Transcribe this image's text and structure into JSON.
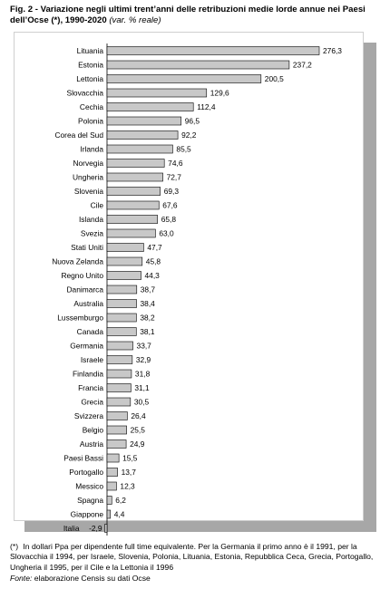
{
  "title": {
    "main": "Fig. 2 - Variazione negli ultimi trent’anni delle retribuzioni medie lorde annue nei Paesi dell’Ocse (*), 1990-2020",
    "unit": "(var. % reale)"
  },
  "chart_data": {
    "type": "bar",
    "orientation": "horizontal",
    "categories": [
      "Lituania",
      "Estonia",
      "Lettonia",
      "Slovacchia",
      "Cechia",
      "Polonia",
      "Corea del Sud",
      "Irlanda",
      "Norvegia",
      "Ungheria",
      "Slovenia",
      "Cile",
      "Islanda",
      "Svezia",
      "Stati Uniti",
      "Nuova Zelanda",
      "Regno Unito",
      "Danimarca",
      "Australia",
      "Lussemburgo",
      "Canada",
      "Germania",
      "Israele",
      "Finlandia",
      "Francia",
      "Grecia",
      "Svizzera",
      "Belgio",
      "Austria",
      "Paesi Bassi",
      "Portogallo",
      "Messico",
      "Spagna",
      "Giappone",
      "Italia"
    ],
    "values": [
      276.3,
      237.2,
      200.5,
      129.6,
      112.4,
      96.5,
      92.2,
      85.5,
      74.6,
      72.7,
      69.3,
      67.6,
      65.8,
      63.0,
      47.7,
      45.8,
      44.3,
      38.7,
      38.4,
      38.2,
      38.1,
      33.7,
      32.9,
      31.8,
      31.1,
      30.5,
      26.4,
      25.5,
      24.9,
      15.5,
      13.7,
      12.3,
      6.2,
      4.4,
      -2.9
    ],
    "value_labels": [
      "276,3",
      "237,2",
      "200,5",
      "129,6",
      "112,4",
      "96,5",
      "92,2",
      "85,5",
      "74,6",
      "72,7",
      "69,3",
      "67,6",
      "65,8",
      "63,0",
      "47,7",
      "45,8",
      "44,3",
      "38,7",
      "38,4",
      "38,2",
      "38,1",
      "33,7",
      "32,9",
      "31,8",
      "31,1",
      "30,5",
      "26,4",
      "25,5",
      "24,9",
      "15,5",
      "13,7",
      "12,3",
      "6,2",
      "4,4",
      "-2,9"
    ],
    "bar_color": "#c8c8c8",
    "bar_stroke": "#000000"
  },
  "footnote": {
    "mark": "(*)",
    "text": "In dollari Ppa per dipendente full time equivalente. Per la Germania il primo anno è il 1991, per la Slovacchia il 1994, per Israele, Slovenia, Polonia, Lituania, Estonia, Repubblica Ceca, Grecia, Portogallo, Ungheria il 1995, per il Cile e la Lettonia il 1996"
  },
  "source": {
    "label": "Fonte:",
    "text": "elaborazione Censis su dati Ocse"
  }
}
